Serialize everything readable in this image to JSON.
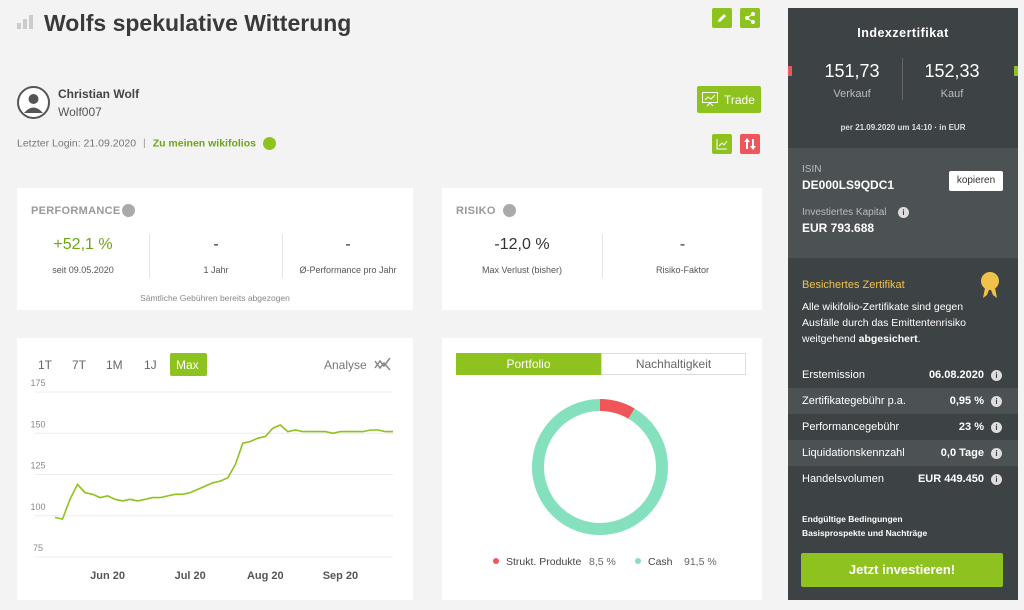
{
  "header": {
    "title": "Wolfs spekulative Witterung"
  },
  "trader": {
    "name": "Christian Wolf",
    "handle": "Wolf007",
    "last_login": "Letzter Login: 21.09.2020",
    "separator": "|",
    "link": "Zu meinen wikifolios"
  },
  "actions": {
    "trade": "Trade"
  },
  "performance": {
    "title": "PERFORMANCE",
    "items": [
      {
        "value": "+52,1 %",
        "label": "seit 09.05.2020"
      },
      {
        "value": "-",
        "label": "1 Jahr"
      },
      {
        "value": "-",
        "label": "Ø-Performance pro Jahr"
      }
    ],
    "note": "Sämtliche Gebühren bereits abgezogen"
  },
  "risk": {
    "title": "RISIKO",
    "items": [
      {
        "value": "-12,0 %",
        "label": "Max Verlust (bisher)"
      },
      {
        "value": "-",
        "label": "Risiko-Faktor"
      }
    ]
  },
  "chart_tabs": {
    "items": [
      "1T",
      "7T",
      "1M",
      "1J",
      "Max"
    ],
    "analyse": "Analyse"
  },
  "portfolio_tabs": {
    "items": [
      "Portfolio",
      "Nachhaltigkeit"
    ]
  },
  "chart_data": [
    {
      "type": "line",
      "color": "#8dc21f",
      "grid": true,
      "ylim": [
        75,
        175
      ],
      "yticks": [
        75,
        100,
        125,
        150,
        175
      ],
      "categories": [
        null,
        null,
        null,
        null,
        null,
        null,
        null,
        "Jun 20",
        null,
        null,
        null,
        null,
        null,
        null,
        null,
        null,
        null,
        null,
        "Jul 20",
        null,
        null,
        null,
        null,
        null,
        null,
        null,
        null,
        null,
        "Aug 20",
        null,
        null,
        null,
        null,
        null,
        null,
        null,
        null,
        null,
        "Sep 20",
        null,
        null,
        null,
        null,
        null,
        null,
        null
      ],
      "values": [
        99,
        98,
        110,
        119,
        114,
        113,
        111,
        112,
        110,
        109,
        110,
        109,
        110,
        111,
        111,
        112,
        113,
        113,
        114,
        116,
        118,
        120,
        121,
        123,
        131,
        144,
        145,
        147,
        148,
        153,
        155,
        151,
        152,
        151,
        151,
        151,
        151,
        150,
        151,
        151,
        151,
        151,
        152,
        152,
        151,
        151
      ]
    },
    {
      "type": "pie",
      "categories": [
        "Strukt. Produkte",
        "Cash"
      ],
      "values": [
        8.5,
        91.5
      ],
      "value_labels": [
        "8,5 %",
        "91,5 %"
      ],
      "colors": [
        "#f0555a",
        "#84e0bd"
      ]
    }
  ],
  "sidebar": {
    "title": "Indexzertifikat",
    "sell_price": "151,73",
    "sell_label": "Verkauf",
    "buy_price": "152,33",
    "buy_label": "Kauf",
    "price_note": "per 21.09.2020 um 14:10 · in EUR",
    "isin_label": "ISIN",
    "isin": "DE000LS9QDC1",
    "copy": "kopieren",
    "capital_label": "Investiertes Kapital",
    "capital": "EUR 793.688",
    "secured_title": "Besichertes Zertifikat",
    "secured_text": "Alle wikifolio-Zertifikate sind gegen Ausfälle durch das Emittentenrisiko weitgehend",
    "secured_bold": "abgesichert",
    "secured_end": ".",
    "facts": [
      [
        "Erstemission",
        "06.08.2020"
      ],
      [
        "Zertifikategebühr p.a.",
        "0,95 %"
      ],
      [
        "Performancegebühr",
        "23 %"
      ],
      [
        "Liquidationskennzahl",
        "0,0 Tage"
      ],
      [
        "Handelsvolumen",
        "EUR 449.450"
      ]
    ],
    "links": [
      "Endgültige Bedingungen",
      "Basisprospekte und Nachträge"
    ],
    "cta": "Jetzt investieren!"
  }
}
